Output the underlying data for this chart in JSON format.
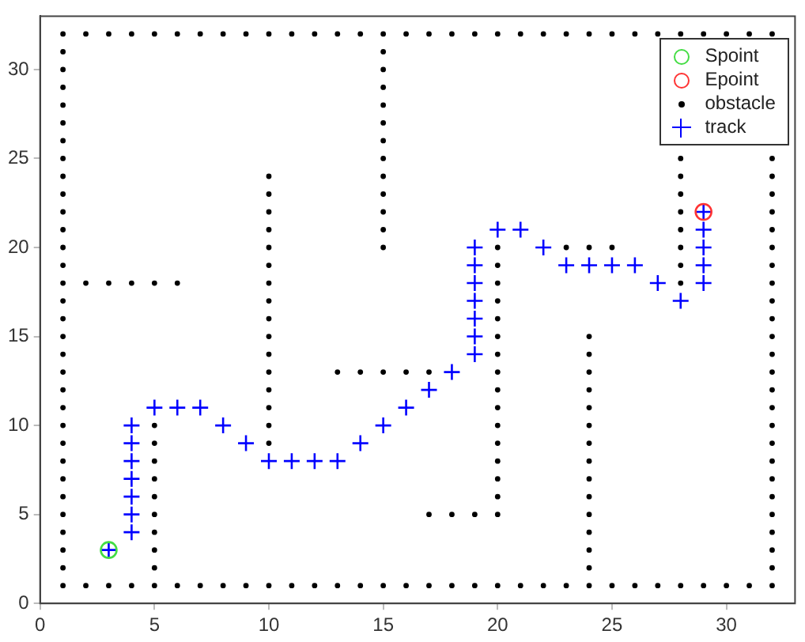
{
  "chart_data": {
    "type": "scatter",
    "xlim": [
      0,
      33
    ],
    "ylim": [
      0,
      33
    ],
    "xticks": [
      0,
      5,
      10,
      15,
      20,
      25,
      30
    ],
    "yticks": [
      0,
      5,
      10,
      15,
      20,
      25,
      30
    ],
    "grid": false,
    "legend": "top right",
    "series": [
      {
        "name": "Spoint",
        "color": "#44dd44",
        "marker": "circle",
        "x": [
          3
        ],
        "values": [
          3
        ]
      },
      {
        "name": "Epoint",
        "color": "#ff3333",
        "marker": "circle",
        "x": [
          29
        ],
        "values": [
          22
        ]
      },
      {
        "name": "obstacle",
        "color": "#000000",
        "marker": "circle",
        "x": [
          1,
          2,
          3,
          4,
          5,
          6,
          7,
          8,
          9,
          10,
          11,
          12,
          13,
          14,
          15,
          16,
          17,
          18,
          19,
          20,
          21,
          22,
          23,
          24,
          25,
          26,
          27,
          28,
          29,
          30,
          31,
          32,
          1,
          2,
          3,
          4,
          5,
          6,
          7,
          8,
          9,
          10,
          11,
          12,
          13,
          14,
          15,
          16,
          17,
          18,
          19,
          20,
          21,
          22,
          23,
          24,
          25,
          26,
          27,
          28,
          29,
          30,
          31,
          32,
          1,
          1,
          1,
          1,
          1,
          1,
          1,
          1,
          1,
          1,
          1,
          1,
          1,
          1,
          1,
          1,
          1,
          1,
          1,
          1,
          1,
          1,
          1,
          1,
          1,
          1,
          1,
          1,
          1,
          1,
          32,
          32,
          32,
          32,
          32,
          32,
          32,
          32,
          32,
          32,
          32,
          32,
          32,
          32,
          32,
          32,
          32,
          32,
          32,
          32,
          32,
          32,
          32,
          32,
          15,
          15,
          15,
          15,
          15,
          15,
          15,
          15,
          15,
          15,
          15,
          15,
          10,
          10,
          10,
          10,
          10,
          10,
          10,
          10,
          10,
          10,
          10,
          10,
          10,
          10,
          10,
          10,
          2,
          3,
          4,
          5,
          6,
          5,
          5,
          5,
          5,
          5,
          5,
          5,
          5,
          5,
          13,
          14,
          15,
          16,
          17,
          20,
          20,
          20,
          20,
          20,
          20,
          20,
          20,
          20,
          20,
          20,
          20,
          20,
          20,
          20,
          20,
          23,
          24,
          25,
          17,
          18,
          19,
          24,
          24,
          24,
          24,
          24,
          24,
          24,
          24,
          24,
          24,
          24,
          24,
          24,
          24,
          28,
          28,
          28,
          28,
          28,
          28,
          28,
          28
        ],
        "values": [
          1,
          1,
          1,
          1,
          1,
          1,
          1,
          1,
          1,
          1,
          1,
          1,
          1,
          1,
          1,
          1,
          1,
          1,
          1,
          1,
          1,
          1,
          1,
          1,
          1,
          1,
          1,
          1,
          1,
          1,
          1,
          1,
          32,
          32,
          32,
          32,
          32,
          32,
          32,
          32,
          32,
          32,
          32,
          32,
          32,
          32,
          32,
          32,
          32,
          32,
          32,
          32,
          32,
          32,
          32,
          32,
          32,
          32,
          32,
          32,
          32,
          32,
          32,
          32,
          2,
          3,
          4,
          5,
          6,
          7,
          8,
          9,
          10,
          11,
          12,
          13,
          14,
          15,
          16,
          17,
          18,
          19,
          20,
          21,
          22,
          23,
          24,
          25,
          26,
          27,
          28,
          29,
          30,
          31,
          2,
          3,
          4,
          5,
          6,
          7,
          8,
          9,
          10,
          11,
          12,
          13,
          14,
          15,
          16,
          17,
          18,
          19,
          20,
          21,
          22,
          23,
          24,
          25,
          20,
          21,
          22,
          23,
          24,
          25,
          26,
          27,
          28,
          29,
          30,
          31,
          9,
          10,
          11,
          12,
          13,
          14,
          15,
          16,
          17,
          18,
          19,
          20,
          21,
          22,
          23,
          24,
          18,
          18,
          18,
          18,
          18,
          2,
          3,
          4,
          5,
          6,
          7,
          8,
          9,
          10,
          13,
          13,
          13,
          13,
          13,
          5,
          6,
          7,
          8,
          9,
          10,
          11,
          12,
          13,
          14,
          15,
          16,
          17,
          18,
          19,
          20,
          20,
          20,
          20,
          5,
          5,
          5,
          2,
          3,
          4,
          5,
          6,
          7,
          8,
          9,
          10,
          11,
          12,
          13,
          14,
          15,
          18,
          19,
          20,
          21,
          22,
          23,
          24,
          25
        ]
      },
      {
        "name": "track",
        "color": "#0000ff",
        "marker": "cross",
        "x": [
          3,
          4,
          4,
          4,
          4,
          4,
          4,
          4,
          5,
          6,
          7,
          8,
          9,
          10,
          11,
          12,
          13,
          14,
          15,
          16,
          17,
          18,
          19,
          19,
          19,
          19,
          19,
          19,
          19,
          20,
          21,
          22,
          23,
          24,
          25,
          26,
          27,
          28,
          29,
          29,
          29,
          29,
          29
        ],
        "values": [
          3,
          4,
          5,
          6,
          7,
          8,
          9,
          10,
          11,
          11,
          11,
          10,
          9,
          8,
          8,
          8,
          8,
          9,
          10,
          11,
          12,
          13,
          14,
          15,
          16,
          17,
          18,
          19,
          20,
          21,
          21,
          20,
          19,
          19,
          19,
          19,
          18,
          17,
          18,
          19,
          20,
          21,
          22
        ]
      }
    ]
  }
}
